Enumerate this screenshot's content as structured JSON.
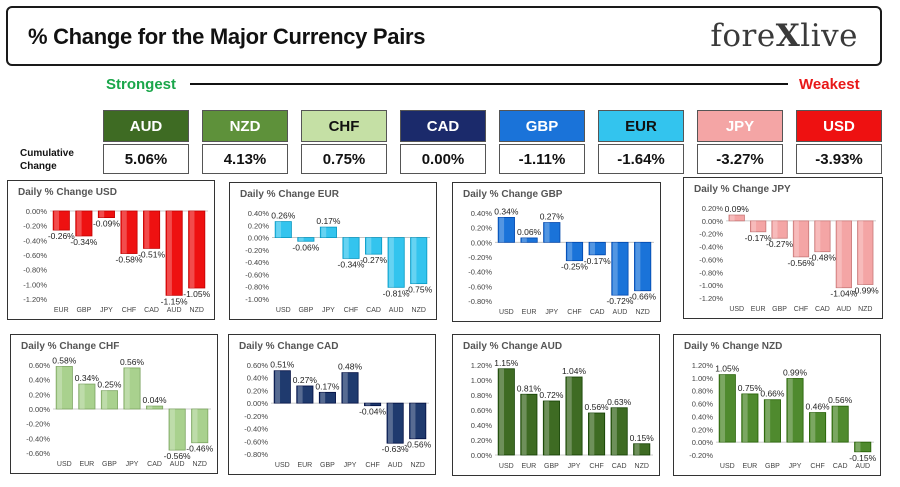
{
  "header": {
    "title": "% Change for the Major Currency Pairs",
    "logo_text": "forexlive"
  },
  "scale": {
    "strongest_label": "Strongest",
    "weakest_label": "Weakest",
    "cumulative_label": "Cumulative Change"
  },
  "currencies": [
    {
      "code": "AUD",
      "value": "5.06%",
      "bg": "#3e6b23",
      "fg": "#ffffff"
    },
    {
      "code": "NZD",
      "value": "4.13%",
      "bg": "#5e913a",
      "fg": "#ffffff"
    },
    {
      "code": "CHF",
      "value": "0.75%",
      "bg": "#c5e0a5",
      "fg": "#111111"
    },
    {
      "code": "CAD",
      "value": "0.00%",
      "bg": "#1b2a6b",
      "fg": "#ffffff"
    },
    {
      "code": "GBP",
      "value": "-1.11%",
      "bg": "#1a73d9",
      "fg": "#ffffff"
    },
    {
      "code": "EUR",
      "value": "-1.64%",
      "bg": "#33c4ee",
      "fg": "#111111"
    },
    {
      "code": "JPY",
      "value": "-3.27%",
      "bg": "#f4a5a5",
      "fg": "#ffffff"
    },
    {
      "code": "USD",
      "value": "-3.93%",
      "bg": "#ee1111",
      "fg": "#ffffff"
    }
  ],
  "chart_data": [
    {
      "type": "bar",
      "title": "Daily % Change USD",
      "categories": [
        "EUR",
        "GBP",
        "JPY",
        "CHF",
        "CAD",
        "AUD",
        "NZD"
      ],
      "values": [
        -0.26,
        -0.34,
        -0.09,
        -0.58,
        -0.51,
        -1.15,
        -1.05
      ],
      "labels": [
        "-0.26%",
        "-0.34%",
        "-0.09%",
        "-0.58%",
        "-0.51%",
        "-1.15%",
        "-1.05%"
      ],
      "ylim": [
        -1.2,
        0.0
      ],
      "yticks": [
        "0.00%",
        "-0.20%",
        "-0.40%",
        "-0.60%",
        "-0.80%",
        "-1.00%",
        "-1.20%"
      ],
      "color": "#ee1111"
    },
    {
      "type": "bar",
      "title": "Daily % Change EUR",
      "categories": [
        "USD",
        "GBP",
        "JPY",
        "CHF",
        "CAD",
        "AUD",
        "NZD"
      ],
      "values": [
        0.26,
        -0.06,
        0.17,
        -0.34,
        -0.27,
        -0.81,
        -0.75
      ],
      "labels": [
        "0.26%",
        "-0.06%",
        "0.17%",
        "-0.34%",
        "-0.27%",
        "-0.81%",
        "-0.75%"
      ],
      "ylim": [
        -1.0,
        0.4
      ],
      "yticks": [
        "0.40%",
        "0.20%",
        "0.00%",
        "-0.20%",
        "-0.40%",
        "-0.60%",
        "-0.80%",
        "-1.00%"
      ],
      "color": "#33c4ee"
    },
    {
      "type": "bar",
      "title": "Daily % Change GBP",
      "categories": [
        "USD",
        "EUR",
        "JPY",
        "CHF",
        "CAD",
        "AUD",
        "NZD"
      ],
      "values": [
        0.34,
        0.06,
        0.27,
        -0.25,
        -0.17,
        -0.72,
        -0.66
      ],
      "labels": [
        "0.34%",
        "0.06%",
        "0.27%",
        "-0.25%",
        "-0.17%",
        "-0.72%",
        "-0.66%"
      ],
      "ylim": [
        -0.8,
        0.4
      ],
      "yticks": [
        "0.40%",
        "0.20%",
        "0.00%",
        "-0.20%",
        "-0.40%",
        "-0.60%",
        "-0.80%"
      ],
      "color": "#1a73d9"
    },
    {
      "type": "bar",
      "title": "Daily % Change JPY",
      "categories": [
        "USD",
        "EUR",
        "GBP",
        "CHF",
        "CAD",
        "AUD",
        "NZD"
      ],
      "values": [
        0.09,
        -0.17,
        -0.27,
        -0.56,
        -0.48,
        -1.04,
        -0.99
      ],
      "labels": [
        "0.09%",
        "-0.17%",
        "-0.27%",
        "-0.56%",
        "-0.48%",
        "-1.04%",
        "-0.99%"
      ],
      "ylim": [
        -1.2,
        0.2
      ],
      "yticks": [
        "0.20%",
        "0.00%",
        "-0.20%",
        "-0.40%",
        "-0.60%",
        "-0.80%",
        "-1.00%",
        "-1.20%"
      ],
      "color": "#f4a5a5"
    },
    {
      "type": "bar",
      "title": "Daily % Change CHF",
      "categories": [
        "USD",
        "EUR",
        "GBP",
        "JPY",
        "CAD",
        "AUD",
        "NZD"
      ],
      "values": [
        0.58,
        0.34,
        0.25,
        0.56,
        0.04,
        -0.56,
        -0.46
      ],
      "labels": [
        "0.58%",
        "0.34%",
        "0.25%",
        "0.56%",
        "0.04%",
        "-0.56%",
        "-0.46%"
      ],
      "ylim": [
        -0.6,
        0.6
      ],
      "yticks": [
        "0.60%",
        "0.40%",
        "0.20%",
        "0.00%",
        "-0.20%",
        "-0.40%",
        "-0.60%"
      ],
      "color": "#a9d18e"
    },
    {
      "type": "bar",
      "title": "Daily % Change CAD",
      "categories": [
        "USD",
        "EUR",
        "GBP",
        "JPY",
        "CHF",
        "AUD",
        "NZD"
      ],
      "values": [
        0.51,
        0.27,
        0.17,
        0.48,
        -0.04,
        -0.63,
        -0.56
      ],
      "labels": [
        "0.51%",
        "0.27%",
        "0.17%",
        "0.48%",
        "-0.04%",
        "-0.63%",
        "-0.56%"
      ],
      "ylim": [
        -0.8,
        0.6
      ],
      "yticks": [
        "0.60%",
        "0.40%",
        "0.20%",
        "0.00%",
        "-0.20%",
        "-0.40%",
        "-0.60%",
        "-0.80%"
      ],
      "color": "#1f3a6e"
    },
    {
      "type": "bar",
      "title": "Daily % Change AUD",
      "categories": [
        "USD",
        "EUR",
        "GBP",
        "JPY",
        "CHF",
        "CAD",
        "NZD"
      ],
      "values": [
        1.15,
        0.81,
        0.72,
        1.04,
        0.56,
        0.63,
        0.15
      ],
      "labels": [
        "1.15%",
        "0.81%",
        "0.72%",
        "1.04%",
        "0.56%",
        "0.63%",
        "0.15%"
      ],
      "ylim": [
        0.0,
        1.2
      ],
      "yticks": [
        "1.20%",
        "1.00%",
        "0.80%",
        "0.60%",
        "0.40%",
        "0.20%",
        "0.00%"
      ],
      "color": "#3e6b23"
    },
    {
      "type": "bar",
      "title": "Daily % Change NZD",
      "categories": [
        "USD",
        "EUR",
        "GBP",
        "JPY",
        "CHF",
        "CAD",
        "AUD"
      ],
      "values": [
        1.05,
        0.75,
        0.66,
        0.99,
        0.46,
        0.56,
        -0.15
      ],
      "labels": [
        "1.05%",
        "0.75%",
        "0.66%",
        "0.99%",
        "0.46%",
        "0.56%",
        "-0.15%"
      ],
      "ylim": [
        -0.2,
        1.2
      ],
      "yticks": [
        "1.20%",
        "1.00%",
        "0.80%",
        "0.60%",
        "0.40%",
        "0.20%",
        "0.00%",
        "-0.20%"
      ],
      "color": "#4f8a2e"
    }
  ]
}
